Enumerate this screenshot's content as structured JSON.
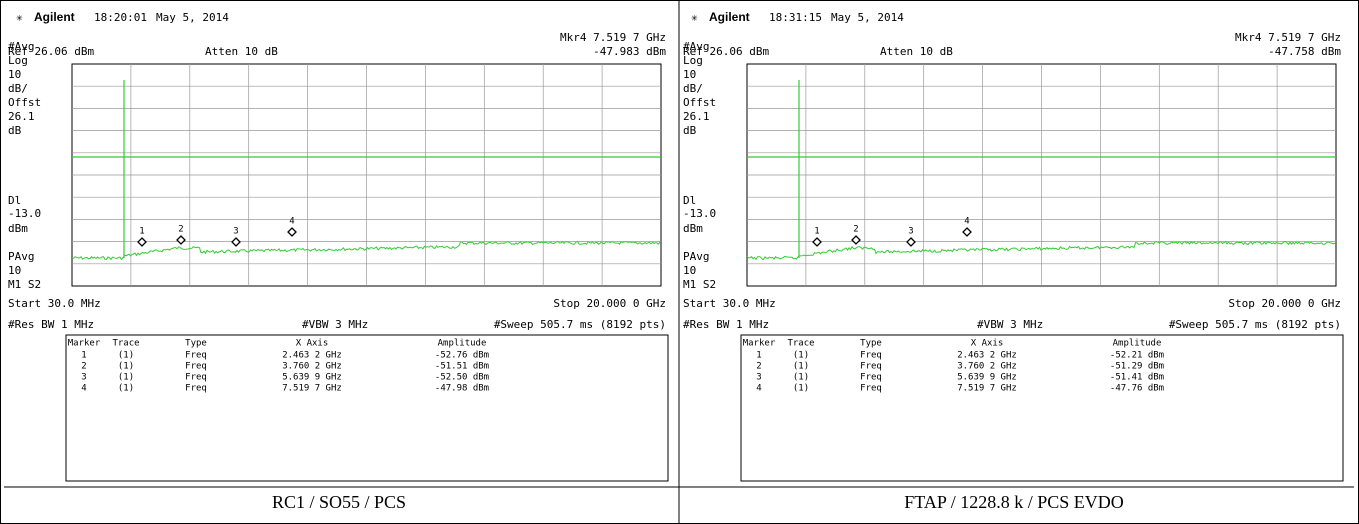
{
  "panels": [
    {
      "header": {
        "brand": "Agilent",
        "time": "18:20:01",
        "date": "May 5, 2014"
      },
      "marker_readout": "Mkr4  7.519 7 GHz",
      "ref": "Ref 26.06 dBm",
      "atten": "Atten 10 dB",
      "marker_amplitude": "-47.983 dBm",
      "left_labels": [
        "#Avg",
        "Log",
        "10",
        "dB/",
        "Offst",
        "26.1",
        "dB",
        "Dl",
        "-13.0",
        "dBm",
        "PAvg",
        "10",
        "M1  S2"
      ],
      "markers": [
        "1",
        "2",
        "3",
        "4"
      ],
      "start": "Start 30.0 MHz",
      "stop": "Stop 20.000 0 GHz",
      "res_bw": "#Res BW 1 MHz",
      "vbw": "#VBW 3 MHz",
      "sweep": "#Sweep 505.7 ms (8192 pts)",
      "table": {
        "header": [
          "Marker",
          "Trace",
          "Type",
          "X Axis",
          "Amplitude"
        ],
        "rows": [
          [
            "1",
            "(1)",
            "Freq",
            "2.463 2 GHz",
            "-52.76 dBm"
          ],
          [
            "2",
            "(1)",
            "Freq",
            "3.760 2 GHz",
            "-51.51 dBm"
          ],
          [
            "3",
            "(1)",
            "Freq",
            "5.639 9 GHz",
            "-52.50 dBm"
          ],
          [
            "4",
            "(1)",
            "Freq",
            "7.519 7 GHz",
            "-47.98 dBm"
          ]
        ]
      },
      "caption": "RC1 / SO55 / PCS"
    },
    {
      "header": {
        "brand": "Agilent",
        "time": "18:31:15",
        "date": "May 5, 2014"
      },
      "marker_readout": "Mkr4  7.519 7 GHz",
      "ref": "Ref 26.06 dBm",
      "atten": "Atten 10 dB",
      "marker_amplitude": "-47.758 dBm",
      "left_labels": [
        "#Avg",
        "Log",
        "10",
        "dB/",
        "Offst",
        "26.1",
        "dB",
        "Dl",
        "-13.0",
        "dBm",
        "PAvg",
        "10",
        "M1  S2"
      ],
      "markers": [
        "1",
        "2",
        "3",
        "4"
      ],
      "start": "Start 30.0 MHz",
      "stop": "Stop 20.000 0 GHz",
      "res_bw": "#Res BW 1 MHz",
      "vbw": "#VBW 3 MHz",
      "sweep": "#Sweep 505.7 ms (8192 pts)",
      "table": {
        "header": [
          "Marker",
          "Trace",
          "Type",
          "X Axis",
          "Amplitude"
        ],
        "rows": [
          [
            "1",
            "(1)",
            "Freq",
            "2.463 2 GHz",
            "-52.21 dBm"
          ],
          [
            "2",
            "(1)",
            "Freq",
            "3.760 2 GHz",
            "-51.29 dBm"
          ],
          [
            "3",
            "(1)",
            "Freq",
            "5.639 9 GHz",
            "-51.41 dBm"
          ],
          [
            "4",
            "(1)",
            "Freq",
            "7.519 7 GHz",
            "-47.76 dBm"
          ]
        ]
      },
      "caption": "FTAP / 1228.8 k / PCS EVDO"
    }
  ]
}
